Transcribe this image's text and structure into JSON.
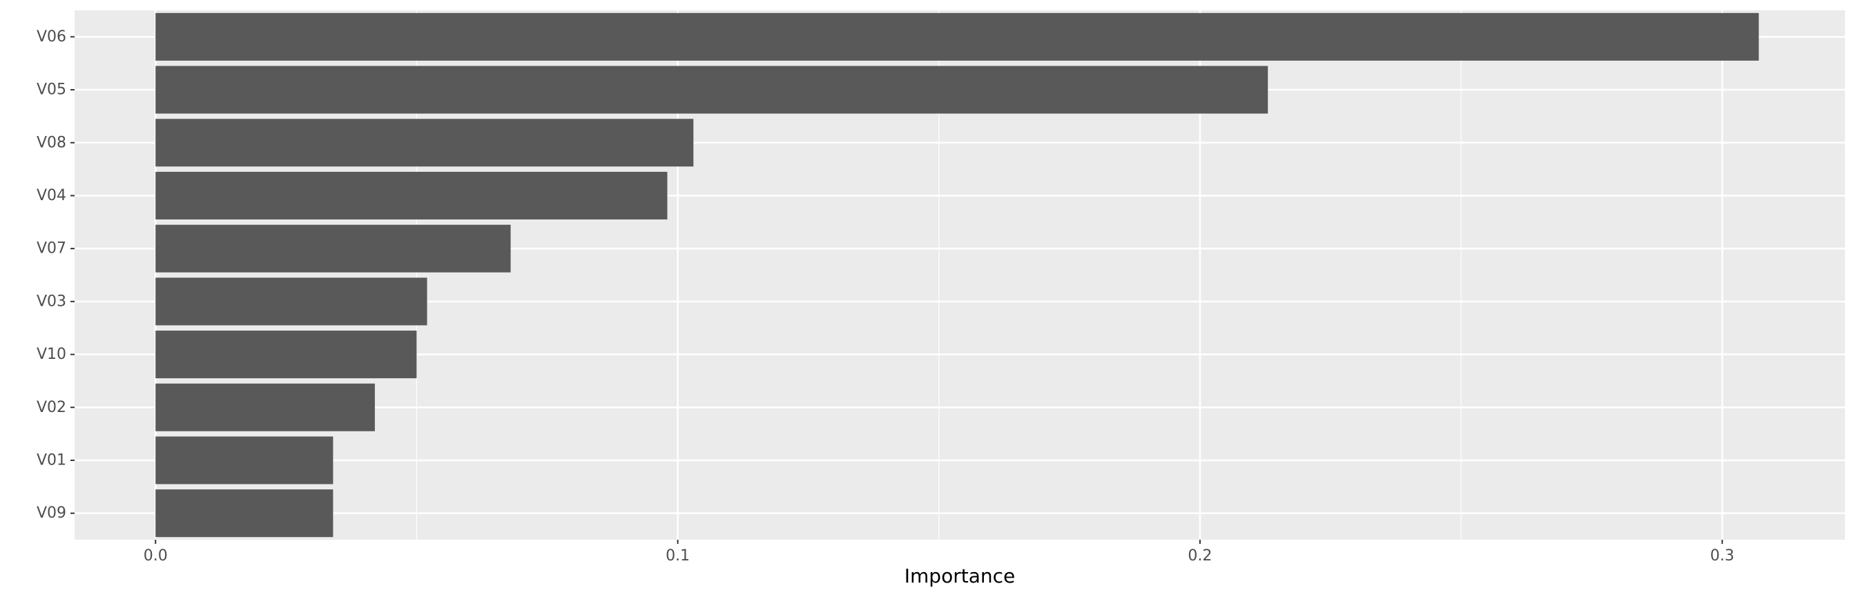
{
  "chart_data": {
    "type": "bar",
    "orientation": "horizontal",
    "xlabel": "Importance",
    "ylabel": "",
    "title": "",
    "categories": [
      "V06",
      "V05",
      "V08",
      "V04",
      "V07",
      "V03",
      "V10",
      "V02",
      "V01",
      "V09"
    ],
    "values": [
      0.307,
      0.213,
      0.103,
      0.098,
      0.068,
      0.052,
      0.05,
      0.042,
      0.034,
      0.034
    ],
    "xlim": [
      -0.0155,
      0.3235
    ],
    "x_ticks": [
      0.0,
      0.1,
      0.2,
      0.3
    ],
    "x_tick_labels": [
      "0.0",
      "0.1",
      "0.2",
      "0.3"
    ],
    "grid": true,
    "legend": "none",
    "colors": {
      "bar": "#595959",
      "panel": "#ebebeb",
      "grid": "#ffffff",
      "tick_text": "#4d4d4d",
      "tick_mark": "#333333"
    }
  }
}
